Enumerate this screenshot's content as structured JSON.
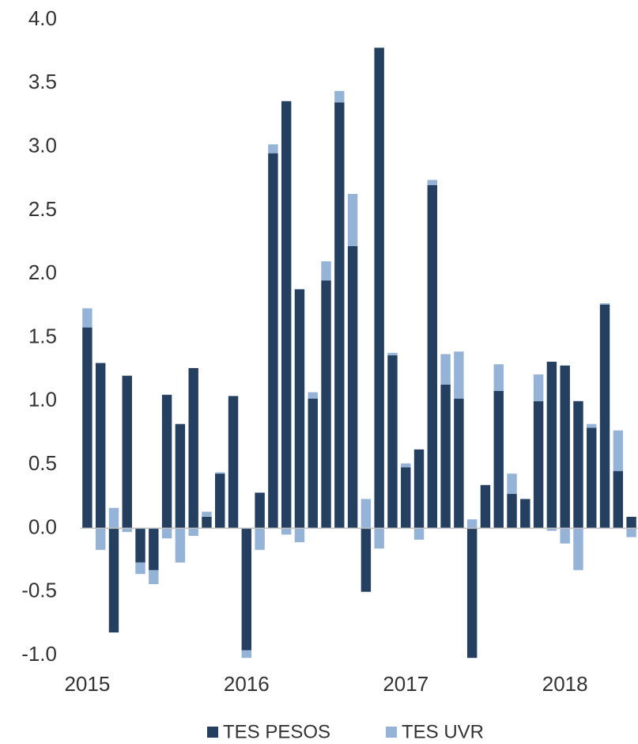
{
  "chart_data": {
    "type": "bar",
    "stacked": true,
    "categories": [
      "2015",
      null,
      null,
      null,
      null,
      null,
      null,
      null,
      null,
      null,
      null,
      null,
      "2016",
      null,
      null,
      null,
      null,
      null,
      null,
      null,
      null,
      null,
      null,
      null,
      "2017",
      null,
      null,
      null,
      null,
      null,
      null,
      null,
      null,
      null,
      null,
      null,
      "2018",
      null,
      null,
      null,
      null,
      null
    ],
    "series": [
      {
        "name": "TES PESOS",
        "color": "#243f60",
        "values": [
          1.58,
          1.3,
          -0.82,
          1.2,
          -0.27,
          -0.33,
          1.05,
          0.82,
          1.26,
          0.09,
          0.43,
          1.04,
          -0.96,
          0.28,
          2.95,
          3.36,
          1.88,
          1.02,
          1.95,
          3.35,
          2.22,
          -0.5,
          3.78,
          1.36,
          0.48,
          0.62,
          2.7,
          1.13,
          1.02,
          -1.02,
          0.34,
          1.08,
          0.27,
          0.23,
          1.0,
          1.31,
          1.28,
          1.0,
          0.79,
          1.76,
          0.45,
          0.09
        ]
      },
      {
        "name": "TES UVR",
        "color": "#95b3d7",
        "values": [
          0.15,
          -0.17,
          0.16,
          -0.03,
          -0.09,
          -0.11,
          -0.08,
          -0.27,
          -0.06,
          0.04,
          0.01,
          0.0,
          -0.06,
          -0.17,
          0.07,
          -0.05,
          -0.11,
          0.05,
          0.15,
          0.09,
          0.41,
          0.23,
          -0.16,
          0.02,
          0.03,
          -0.09,
          0.04,
          0.24,
          0.37,
          0.07,
          0.0,
          0.21,
          0.16,
          0.0,
          0.21,
          -0.02,
          -0.12,
          -0.33,
          0.03,
          0.01,
          0.32,
          -0.07
        ]
      }
    ],
    "ylim": [
      -1.0,
      4.0
    ],
    "yticks": [
      {
        "value": -1.0,
        "label": "-1.0"
      },
      {
        "value": -0.5,
        "label": "-0.5"
      },
      {
        "value": 0,
        "label": "0.0"
      },
      {
        "value": 0.5,
        "label": "0.5"
      },
      {
        "value": 1.0,
        "label": "1.0"
      },
      {
        "value": 1.5,
        "label": "1.5"
      },
      {
        "value": 2.0,
        "label": "2.0"
      },
      {
        "value": 2.5,
        "label": "2.5"
      },
      {
        "value": 3.0,
        "label": "3.0"
      },
      {
        "value": 3.5,
        "label": "3.5"
      },
      {
        "value": 4.0,
        "label": "4.0"
      }
    ],
    "grid": false,
    "legend": "bottom"
  }
}
